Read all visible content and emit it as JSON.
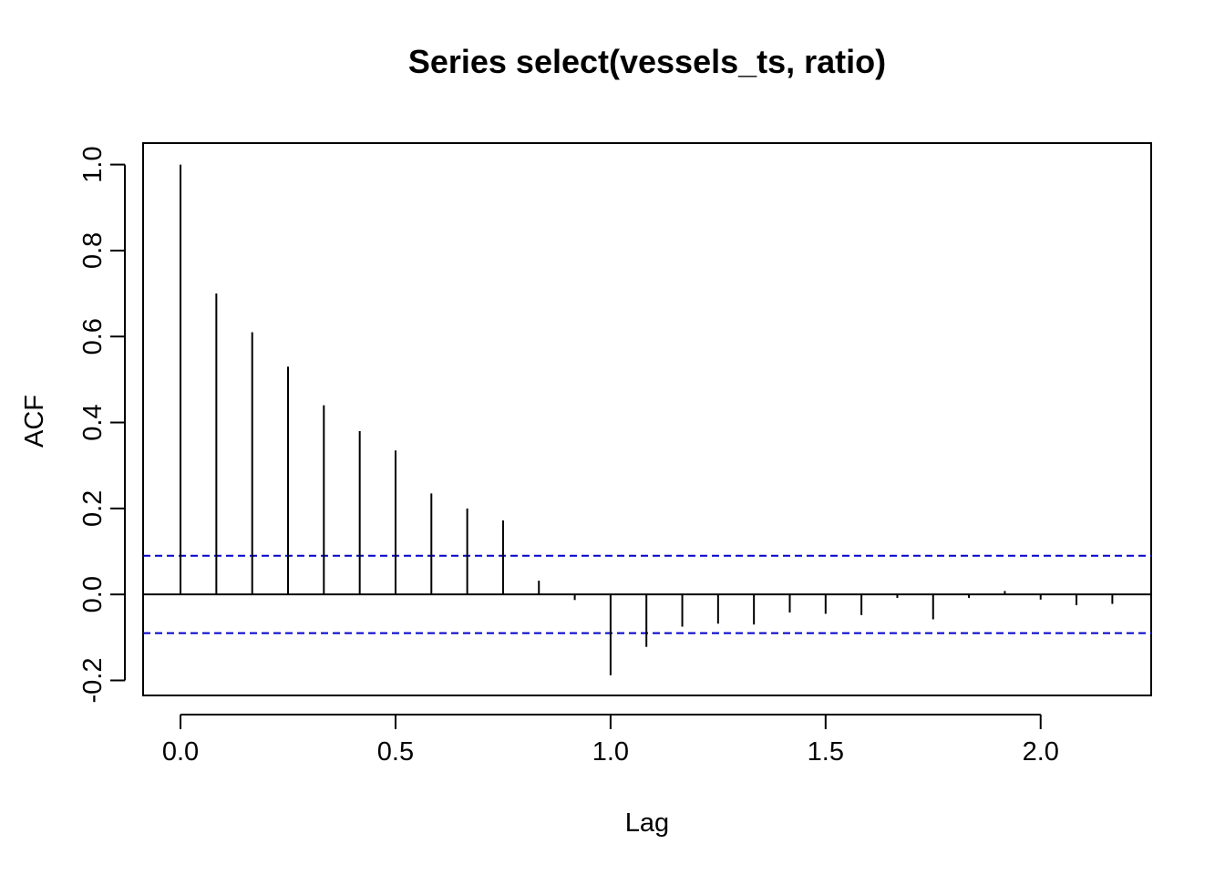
{
  "chart_data": {
    "type": "bar",
    "title": "Series  select(vessels_ts, ratio)",
    "xlabel": "Lag",
    "ylabel": "ACF",
    "xlim": [
      -0.087,
      2.257
    ],
    "ylim": [
      -0.235,
      1.05
    ],
    "x_ticks": [
      0.0,
      0.5,
      1.0,
      1.5,
      2.0
    ],
    "x_tick_labels": [
      "0.0",
      "0.5",
      "1.0",
      "1.5",
      "2.0"
    ],
    "y_ticks": [
      -0.2,
      0.0,
      0.2,
      0.4,
      0.6,
      0.8,
      1.0
    ],
    "y_tick_labels": [
      "-0.2",
      "0.0",
      "0.2",
      "0.4",
      "0.6",
      "0.8",
      "1.0"
    ],
    "lags": [
      0.0,
      0.0833,
      0.1667,
      0.25,
      0.3333,
      0.4167,
      0.5,
      0.5833,
      0.6667,
      0.75,
      0.8333,
      0.9167,
      1.0,
      1.0833,
      1.1667,
      1.25,
      1.3333,
      1.4167,
      1.5,
      1.5833,
      1.6667,
      1.75,
      1.8333,
      1.9167,
      2.0,
      2.0833,
      2.1667
    ],
    "acf": [
      1.0,
      0.7,
      0.61,
      0.53,
      0.44,
      0.38,
      0.335,
      0.235,
      0.2,
      0.172,
      0.032,
      -0.013,
      -0.188,
      -0.122,
      -0.075,
      -0.068,
      -0.07,
      -0.042,
      -0.045,
      -0.048,
      -0.008,
      -0.058,
      -0.008,
      0.008,
      -0.012,
      -0.025,
      -0.022
    ],
    "confidence_bound": 0.09,
    "bar_color": "#000000",
    "confidence_color": "#0000CC"
  }
}
